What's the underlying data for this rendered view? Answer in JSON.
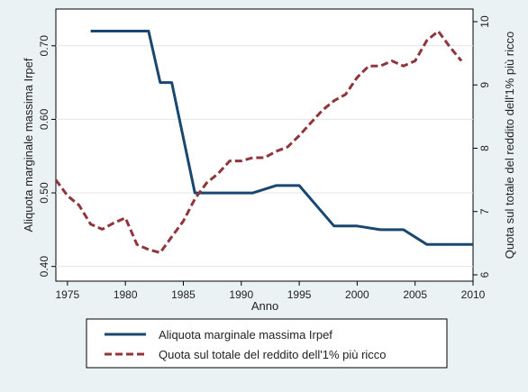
{
  "chart_data": {
    "type": "line",
    "xlabel": "Anno",
    "ylabel_left": "Aliquota marginale massima Irpef",
    "ylabel_right": "Quota sul totale del reddito dell'1% più ricco",
    "xlim": [
      1974,
      2010
    ],
    "ylim_left": [
      0.38,
      0.75
    ],
    "ylim_right": [
      5.9,
      10.2
    ],
    "x_ticks": [
      1975,
      1980,
      1985,
      1990,
      1995,
      2000,
      2005,
      2010
    ],
    "y_ticks_left": [
      "0.40",
      "0.50",
      "0.60",
      "0.70"
    ],
    "y_ticks_right": [
      "6",
      "7",
      "8",
      "9",
      "10"
    ],
    "grid": "horizontal",
    "legend_position": "bottom",
    "series": [
      {
        "name": "Aliquota marginale massima Irpef",
        "axis": "left",
        "color": "#1a476f",
        "style": "solid",
        "x": [
          1977,
          1982,
          1983,
          1984,
          1986,
          1991,
          1993,
          1995,
          1998,
          2000,
          2002,
          2004,
          2006,
          2010
        ],
        "y": [
          0.72,
          0.72,
          0.65,
          0.65,
          0.5,
          0.5,
          0.51,
          0.51,
          0.455,
          0.455,
          0.45,
          0.45,
          0.43,
          0.43
        ]
      },
      {
        "name": "Quota sul totale del reddito dell'1% più ricco",
        "axis": "right",
        "color": "#90353b",
        "style": "dashed",
        "x": [
          1974,
          1975,
          1976,
          1977,
          1978,
          1979,
          1980,
          1981,
          1982,
          1983,
          1984,
          1985,
          1986,
          1987,
          1988,
          1989,
          1990,
          1991,
          1992,
          1993,
          1994,
          1995,
          1996,
          1997,
          1998,
          1999,
          2000,
          2001,
          2002,
          2003,
          2004,
          2005,
          2006,
          2007,
          2008,
          2009
        ],
        "y": [
          7.5,
          7.25,
          7.1,
          6.8,
          6.72,
          6.82,
          6.9,
          6.48,
          6.4,
          6.35,
          6.6,
          6.85,
          7.2,
          7.45,
          7.6,
          7.8,
          7.8,
          7.85,
          7.85,
          7.95,
          8.02,
          8.2,
          8.4,
          8.6,
          8.75,
          8.85,
          9.12,
          9.3,
          9.3,
          9.38,
          9.3,
          9.38,
          9.7,
          9.85,
          9.6,
          9.38
        ]
      }
    ]
  }
}
